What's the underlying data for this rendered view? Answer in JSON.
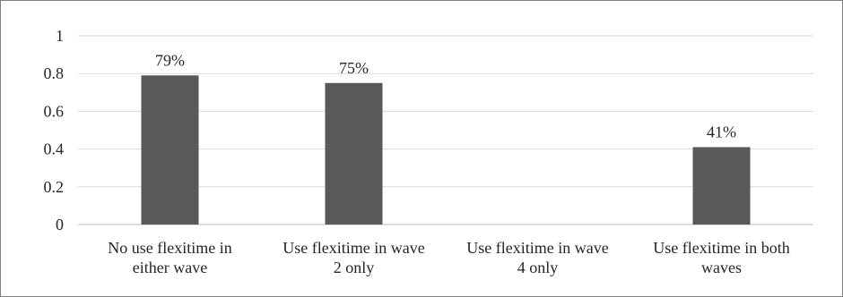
{
  "chart_data": {
    "type": "bar",
    "categories": [
      [
        "No use flexitime in",
        "either wave"
      ],
      [
        "Use flexitime in wave",
        "2 only"
      ],
      [
        "Use flexitime in wave",
        "4 only"
      ],
      [
        "Use flexitime in both",
        "waves"
      ]
    ],
    "values": [
      0.79,
      0.75,
      null,
      0.41
    ],
    "data_labels": [
      "79%",
      "75%",
      "",
      "41%"
    ],
    "title": "",
    "xlabel": "",
    "ylabel": "",
    "ylim": [
      0,
      1
    ],
    "yticks": [
      0,
      0.2,
      0.4,
      0.6,
      0.8,
      1
    ],
    "ytick_labels": [
      "0",
      "0.2",
      "0.4",
      "0.6",
      "0.8",
      "1"
    ],
    "grid": true,
    "legend": "none",
    "colors": {
      "bar": "#595959",
      "grid": "#d9d9d9",
      "axis": "#bfbfbf",
      "text": "#262626"
    }
  }
}
